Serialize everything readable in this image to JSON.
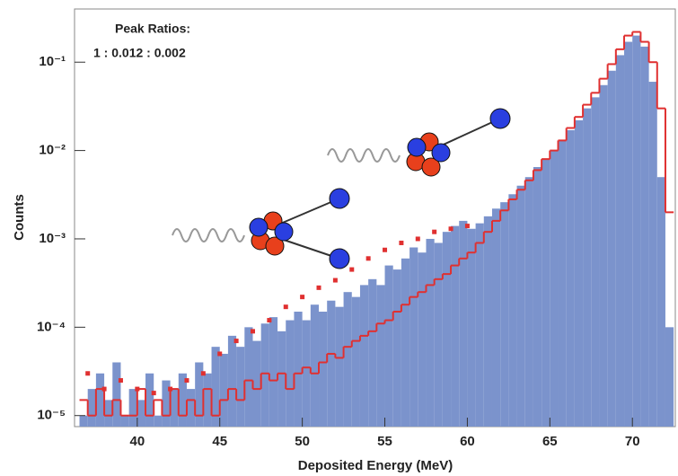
{
  "chart_data": {
    "type": "histogram",
    "x_label": "Deposited Energy (MeV)",
    "y_label": "Counts",
    "annotations": [
      "Peak Ratios:",
      "1 : 0.012 : 0.002"
    ],
    "log_y": true,
    "xlim": [
      36.2,
      72.6
    ],
    "ylim": [
      7.5e-06,
      0.4
    ],
    "xticks": [
      40,
      45,
      50,
      55,
      60,
      65,
      70
    ],
    "yticks": [
      {
        "value": 1e-05,
        "label": "10⁻⁵"
      },
      {
        "value": 0.0001,
        "label": "10⁻⁴"
      },
      {
        "value": 0.001,
        "label": "10⁻³"
      },
      {
        "value": 0.01,
        "label": "10⁻²"
      },
      {
        "value": 0.1,
        "label": "10⁻¹"
      }
    ],
    "bins": [
      36.5,
      37,
      37.5,
      38,
      38.5,
      39,
      39.5,
      40,
      40.5,
      41,
      41.5,
      42,
      42.5,
      43,
      43.5,
      44,
      44.5,
      45,
      45.5,
      46,
      46.5,
      47,
      47.5,
      48,
      48.5,
      49,
      49.5,
      50,
      50.5,
      51,
      51.5,
      52,
      52.5,
      53,
      53.5,
      54,
      54.5,
      55,
      55.5,
      56,
      56.5,
      57,
      57.5,
      58,
      58.5,
      59,
      59.5,
      60,
      60.5,
      61,
      61.5,
      62,
      62.5,
      63,
      63.5,
      64,
      64.5,
      65,
      65.5,
      66,
      66.5,
      67,
      67.5,
      68,
      68.5,
      69,
      69.5,
      70,
      70.5,
      71,
      71.5,
      72,
      72.5
    ],
    "series": [
      {
        "style": "filled",
        "color": "#7b93cc",
        "values": [
          1e-05,
          2e-05,
          3e-05,
          1.5e-05,
          4e-05,
          1e-05,
          2e-05,
          1.5e-05,
          3e-05,
          1e-05,
          2.5e-05,
          2e-05,
          3e-05,
          2e-05,
          4e-05,
          3e-05,
          6e-05,
          5e-05,
          8e-05,
          6e-05,
          0.0001,
          7e-05,
          0.00011,
          0.00013,
          9e-05,
          0.00012,
          0.00015,
          0.00012,
          0.00018,
          0.00015,
          0.0002,
          0.00017,
          0.00025,
          0.00022,
          0.0003,
          0.00035,
          0.0003,
          0.0005,
          0.00045,
          0.0006,
          0.0008,
          0.0007,
          0.001,
          0.0009,
          0.0012,
          0.0014,
          0.0016,
          0.0013,
          0.0015,
          0.0018,
          0.0022,
          0.0026,
          0.0032,
          0.004,
          0.005,
          0.0065,
          0.008,
          0.01,
          0.013,
          0.017,
          0.022,
          0.03,
          0.04,
          0.055,
          0.08,
          0.12,
          0.17,
          0.2,
          0.15,
          0.06,
          0.005,
          0.0001
        ]
      },
      {
        "style": "step",
        "color": "#e03030",
        "values": [
          1.5e-05,
          1e-05,
          2e-05,
          1e-05,
          1.5e-05,
          1e-05,
          1e-05,
          2e-05,
          1e-05,
          1.5e-05,
          1e-05,
          2e-05,
          1e-05,
          1.5e-05,
          1e-05,
          2e-05,
          1e-05,
          1.5e-05,
          2e-05,
          1.5e-05,
          2.5e-05,
          2e-05,
          3e-05,
          2.5e-05,
          3e-05,
          2e-05,
          3e-05,
          3.5e-05,
          3e-05,
          4e-05,
          5e-05,
          4.5e-05,
          6e-05,
          7e-05,
          8e-05,
          9e-05,
          0.00011,
          0.00012,
          0.00015,
          0.00018,
          0.00022,
          0.00025,
          0.0003,
          0.00035,
          0.0004,
          0.0005,
          0.0006,
          0.0007,
          0.0009,
          0.0012,
          0.0016,
          0.0021,
          0.0028,
          0.0036,
          0.0046,
          0.006,
          0.008,
          0.01,
          0.013,
          0.018,
          0.024,
          0.033,
          0.045,
          0.065,
          0.095,
          0.14,
          0.2,
          0.22,
          0.17,
          0.1,
          0.03,
          0.002
        ]
      }
    ],
    "points": {
      "color": "#e03030",
      "x": [
        37,
        38,
        39,
        40,
        41,
        42,
        43,
        44,
        45,
        46,
        47,
        48,
        49,
        50,
        51,
        52,
        53,
        54,
        55,
        56,
        57,
        58,
        59,
        60
      ],
      "y": [
        3e-05,
        2e-05,
        2.5e-05,
        2e-05,
        1.8e-05,
        2e-05,
        2.5e-05,
        3e-05,
        5e-05,
        7e-05,
        9e-05,
        0.00012,
        0.00017,
        0.00022,
        0.00028,
        0.00034,
        0.00045,
        0.0006,
        0.00075,
        0.0009,
        0.001,
        0.0012,
        0.0013,
        0.0014
      ]
    }
  }
}
